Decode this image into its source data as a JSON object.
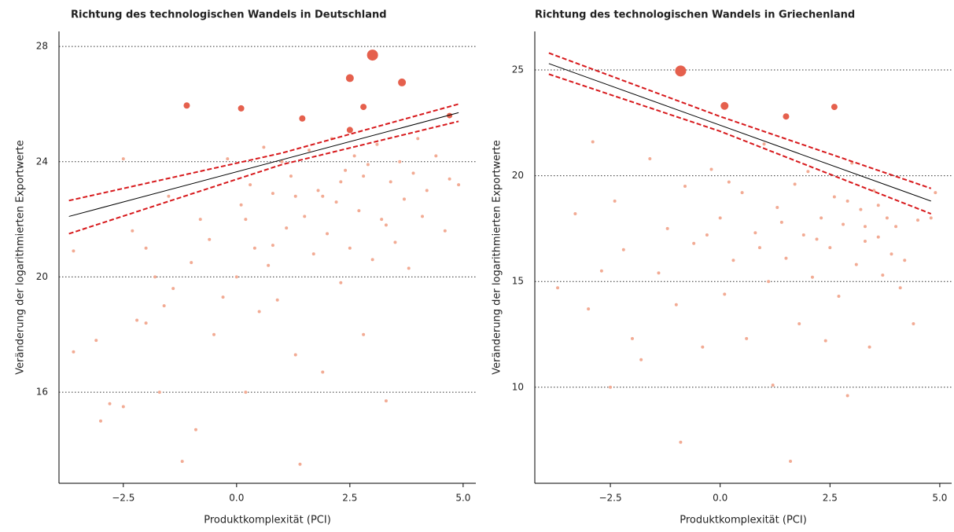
{
  "chart_data": [
    {
      "type": "scatter",
      "title": "Richtung des technologischen Wandels in Deutschland",
      "x_label": "Produktkomplexität (PCI)",
      "y_label": "Veränderung der logarithmierten Exportwerte",
      "xlim": [
        -3.92,
        5.28
      ],
      "ylim": [
        12.84,
        28.52
      ],
      "xticks": [
        {
          "value": -2.5,
          "label": "−2.5"
        },
        {
          "value": 0,
          "label": "0.0"
        },
        {
          "value": 2.5,
          "label": "2.5"
        },
        {
          "value": 5,
          "label": "5.0"
        }
      ],
      "yticks": [
        16,
        20,
        24,
        28
      ],
      "grid": true,
      "points": {
        "color": "#f2ab94",
        "x": [
          -3.6,
          -3.6,
          -3.1,
          -3.0,
          -2.8,
          -2.5,
          -2.5,
          -2.3,
          -2.0,
          -2.0,
          -1.8,
          -1.7,
          -1.5,
          -1.4,
          -1.2,
          -1.0,
          -0.9,
          -0.8,
          -0.6,
          -0.5,
          -0.3,
          -0.2,
          0.0,
          0.1,
          0.2,
          0.3,
          0.4,
          0.5,
          0.6,
          0.7,
          0.8,
          0.9,
          1.0,
          1.1,
          1.2,
          1.3,
          1.4,
          1.5,
          1.6,
          1.7,
          1.8,
          1.9,
          2.0,
          2.1,
          2.2,
          2.3,
          2.4,
          2.5,
          2.6,
          2.7,
          2.8,
          2.9,
          3.0,
          3.1,
          3.2,
          3.3,
          3.4,
          3.5,
          3.6,
          3.7,
          3.8,
          3.9,
          4.0,
          4.1,
          4.2,
          4.4,
          4.6,
          4.7,
          4.9,
          -1.6,
          -2.2,
          0.8,
          1.9,
          2.3,
          3.3,
          0.2,
          1.3,
          2.8
        ],
        "values": [
          20.9,
          17.4,
          17.8,
          15.0,
          15.6,
          15.5,
          24.1,
          21.6,
          21.0,
          18.4,
          20.0,
          16.0,
          22.8,
          19.6,
          13.6,
          20.5,
          14.7,
          22.0,
          21.3,
          18.0,
          19.3,
          24.1,
          20.0,
          22.5,
          16.0,
          23.2,
          21.0,
          18.8,
          24.5,
          20.4,
          22.9,
          19.2,
          24.0,
          21.7,
          23.5,
          17.3,
          13.5,
          22.1,
          24.4,
          20.8,
          23.0,
          16.7,
          21.5,
          24.8,
          22.6,
          19.8,
          23.7,
          21.0,
          24.2,
          22.3,
          18.0,
          23.9,
          20.6,
          24.6,
          22.0,
          15.7,
          23.3,
          21.2,
          24.0,
          22.7,
          20.3,
          23.6,
          24.8,
          22.1,
          23.0,
          24.2,
          21.6,
          23.4,
          23.2,
          19.0,
          18.5,
          21.1,
          22.8,
          23.3,
          21.8,
          22.0,
          22.8,
          23.5
        ]
      },
      "highlights": {
        "color": "#e5604d",
        "x": [
          3.0,
          2.5,
          3.65,
          -1.1,
          0.1,
          2.8,
          1.45,
          2.5,
          4.7
        ],
        "values": [
          27.7,
          26.9,
          26.75,
          25.95,
          25.85,
          25.9,
          25.5,
          25.1,
          25.6
        ],
        "sizes": [
          7,
          5,
          5,
          4,
          4,
          4,
          4,
          4,
          3.5
        ]
      },
      "fit": {
        "color": "#000000",
        "x": [
          -3.7,
          4.9
        ],
        "values": [
          22.1,
          25.7
        ]
      },
      "ci": [
        {
          "color": "#d7191c",
          "x": [
            -3.7,
            1,
            4.9
          ],
          "values": [
            22.65,
            24.3,
            26.0
          ]
        },
        {
          "color": "#d7191c",
          "x": [
            -3.7,
            1,
            4.9
          ],
          "values": [
            21.5,
            23.9,
            25.4
          ]
        }
      ]
    },
    {
      "type": "scatter",
      "title": "Richtung des technologischen Wandels in Griechenland",
      "x_label": "Produktkomplexität (PCI)",
      "y_label": "Veränderung der logarithmierten Exportwerte",
      "xlim": [
        -4.22,
        5.27
      ],
      "ylim": [
        5.46,
        26.82
      ],
      "xticks": [
        {
          "value": -2.5,
          "label": "−2.5"
        },
        {
          "value": 0,
          "label": "0.0"
        },
        {
          "value": 2.5,
          "label": "2.5"
        },
        {
          "value": 5,
          "label": "5.0"
        }
      ],
      "yticks": [
        10,
        15,
        20,
        25
      ],
      "grid": true,
      "points": {
        "color": "#f2ab94",
        "x": [
          -3.7,
          -3.3,
          -3.0,
          -2.9,
          -2.7,
          -2.5,
          -2.4,
          -2.2,
          -2.0,
          -1.8,
          -1.6,
          -1.4,
          -1.2,
          -1.0,
          -0.9,
          -0.8,
          -0.6,
          -0.4,
          -0.2,
          0.0,
          0.1,
          0.3,
          0.5,
          0.6,
          0.8,
          1.0,
          1.1,
          1.2,
          1.3,
          1.5,
          1.6,
          1.7,
          1.8,
          1.9,
          2.0,
          2.1,
          2.3,
          2.4,
          2.5,
          2.6,
          2.7,
          2.8,
          2.9,
          3.0,
          3.1,
          3.2,
          3.3,
          3.4,
          3.5,
          3.6,
          3.7,
          3.8,
          3.9,
          4.0,
          4.1,
          4.2,
          4.4,
          4.5,
          4.8,
          4.9,
          0.2,
          1.4,
          2.2,
          -0.3,
          0.9,
          2.9,
          3.3,
          3.6
        ],
        "values": [
          14.7,
          18.2,
          13.7,
          21.6,
          15.5,
          10.0,
          18.8,
          16.5,
          12.3,
          11.3,
          20.8,
          15.4,
          17.5,
          13.9,
          7.4,
          19.5,
          16.8,
          11.9,
          20.3,
          18.0,
          14.4,
          16.0,
          19.2,
          12.3,
          17.3,
          21.5,
          15.0,
          10.1,
          18.5,
          16.1,
          6.5,
          19.6,
          13.0,
          17.2,
          20.2,
          15.2,
          18.0,
          12.2,
          16.6,
          19.0,
          14.3,
          17.7,
          9.6,
          20.6,
          15.8,
          18.4,
          16.9,
          11.9,
          19.3,
          17.1,
          15.3,
          18.0,
          16.3,
          17.6,
          14.7,
          16.0,
          13.0,
          17.9,
          18.0,
          19.2,
          19.7,
          17.8,
          17.0,
          17.2,
          16.6,
          18.8,
          17.6,
          18.6
        ]
      },
      "highlights": {
        "color": "#e5604d",
        "x": [
          -0.9,
          0.1,
          1.5,
          2.6
        ],
        "values": [
          24.95,
          23.3,
          22.8,
          23.25
        ],
        "sizes": [
          7,
          5,
          4,
          4
        ]
      },
      "fit": {
        "color": "#000000",
        "x": [
          -3.9,
          4.8
        ],
        "values": [
          25.3,
          18.8
        ]
      },
      "ci": [
        {
          "color": "#d7191c",
          "x": [
            -3.9,
            0,
            4.8
          ],
          "values": [
            25.8,
            22.8,
            19.4
          ]
        },
        {
          "color": "#d7191c",
          "x": [
            -3.9,
            0,
            4.8
          ],
          "values": [
            24.8,
            22.1,
            18.2
          ]
        }
      ]
    }
  ]
}
